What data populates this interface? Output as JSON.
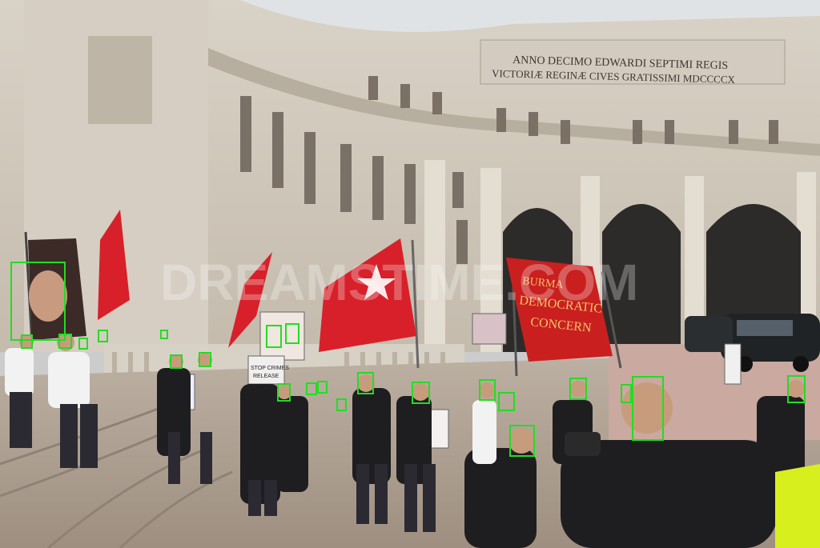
{
  "photo": {
    "inscription": {
      "line1": "ANNO DECIMO EDWARDI SEPTIMI REGIS",
      "line2": "VICTORIÆ REGINÆ CIVES GRATISSIMI MDCCCCX"
    },
    "banner": {
      "line1": "BURMA",
      "line2": "DEMOCRATIC",
      "line3": "CONCERN"
    },
    "placards": [
      {
        "text": "STOP CRIMES"
      },
      {
        "text": "RELEASE"
      }
    ],
    "watermark": "DREAMSTIME.COM"
  },
  "overlay": {
    "box_color": "#22dd22",
    "face_box_count": 27
  },
  "colors": {
    "sky": "#dfe3e6",
    "stone": "#cfc7bb",
    "flag_red": "#d8202a",
    "pavement": "#b9aa9a"
  }
}
